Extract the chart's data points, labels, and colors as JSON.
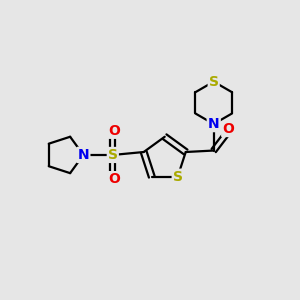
{
  "background_color": "#e6e6e6",
  "atom_colors": {
    "S": "#aaaa00",
    "N": "#0000ee",
    "O": "#ee0000",
    "C": "#000000"
  },
  "bond_color": "#000000",
  "bond_lw": 1.6,
  "figsize": [
    3.0,
    3.0
  ],
  "dpi": 100,
  "xlim": [
    0,
    10
  ],
  "ylim": [
    0,
    10
  ]
}
